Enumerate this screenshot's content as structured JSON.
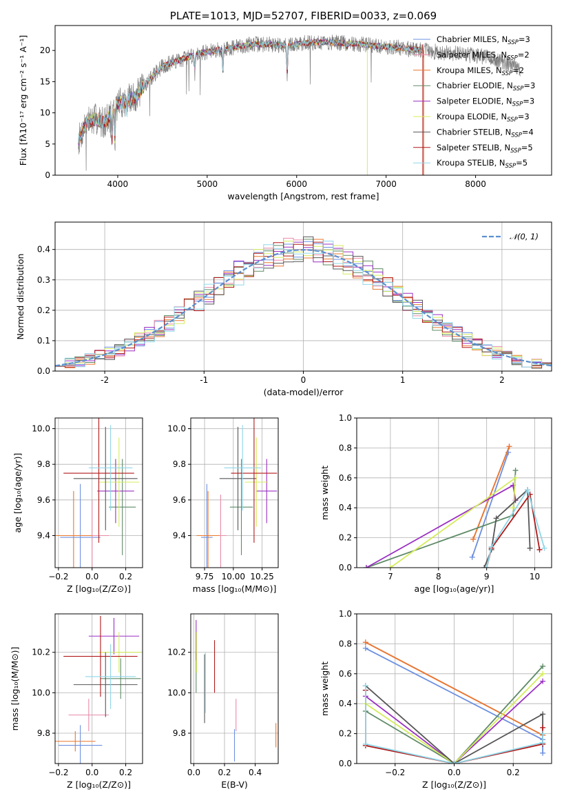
{
  "colors": {
    "chabrier_miles": "#6b8fe0",
    "salpeter_miles": "#e98aa8",
    "kroupa_miles": "#e8762d",
    "chabrier_elodie": "#5e8a66",
    "salpeter_elodie": "#9a2fc2",
    "kroupa_elodie": "#d4ec5a",
    "chabrier_stelib": "#555555",
    "salpeter_stelib": "#b01818",
    "kroupa_stelib": "#8ed6e8",
    "data": "#808080",
    "gaussian": "#5b8fd0"
  },
  "chart_data": [
    {
      "id": "spectrum",
      "type": "line",
      "title": "PLATE=1013, MJD=52707, FIBERID=0033, z=0.069",
      "xlabel": "wavelength [Angstrom, rest frame]",
      "ylabel": "Flux [fλ10⁻¹⁷ erg cm⁻² s⁻¹ A⁻¹]",
      "xlim": [
        3300,
        8850
      ],
      "ylim": [
        0,
        24
      ],
      "xticks": [
        4000,
        5000,
        6000,
        7000,
        8000
      ],
      "yticks": [
        0,
        5,
        10,
        15,
        20
      ],
      "legend_position": "upper-right",
      "legend": [
        {
          "key": "chabrier_miles",
          "label": "Chabrier MILES, N",
          "sub": "SSP",
          "tail": "=3"
        },
        {
          "key": "salpeter_miles",
          "label": "Salpeter MILES, N",
          "sub": "SSP",
          "tail": "=2"
        },
        {
          "key": "kroupa_miles",
          "label": "Kroupa MILES, N",
          "sub": "SSP",
          "tail": "=2"
        },
        {
          "key": "chabrier_elodie",
          "label": "Chabrier ELODIE, N",
          "sub": "SSP",
          "tail": "=3"
        },
        {
          "key": "salpeter_elodie",
          "label": "Salpeter ELODIE, N",
          "sub": "SSP",
          "tail": "=3"
        },
        {
          "key": "kroupa_elodie",
          "label": "Kroupa ELODIE, N",
          "sub": "SSP",
          "tail": "=3"
        },
        {
          "key": "chabrier_stelib",
          "label": "Chabrier STELIB, N",
          "sub": "SSP",
          "tail": "=4"
        },
        {
          "key": "salpeter_stelib",
          "label": "Salpeter STELIB, N",
          "sub": "SSP",
          "tail": "=5"
        },
        {
          "key": "kroupa_stelib",
          "label": "Kroupa STELIB, N",
          "sub": "SSP",
          "tail": "=5"
        }
      ],
      "continuum": {
        "x": [
          3560,
          3650,
          3750,
          3850,
          3950,
          4000,
          4100,
          4200,
          4300,
          4400,
          4500,
          4700,
          4900,
          5100,
          5300,
          5500,
          5700,
          5900,
          6100,
          6300,
          6500,
          6700,
          6900,
          7100,
          7300,
          7500,
          7700,
          7900,
          8100,
          8300,
          8500
        ],
        "y": [
          5.5,
          8.5,
          9.0,
          8.5,
          10.0,
          11.5,
          12.0,
          12.5,
          14.5,
          16.0,
          17.5,
          18.5,
          19.5,
          20.0,
          20.5,
          21.0,
          21.0,
          20.8,
          21.2,
          21.3,
          21.2,
          21.0,
          20.7,
          20.5,
          20.2,
          19.9,
          19.6,
          19.3,
          19.0,
          18.2,
          17.0
        ]
      }
    },
    {
      "id": "residuals",
      "type": "histogram",
      "xlabel": "(data-model)/error",
      "ylabel": "Normed distribution",
      "xlim": [
        -2.5,
        2.5
      ],
      "ylim": [
        0,
        0.49
      ],
      "xticks": [
        -2,
        -1,
        0,
        1,
        2
      ],
      "yticks": [
        0.0,
        0.1,
        0.2,
        0.3,
        0.4
      ],
      "legend": "𝒩(0, 1)",
      "legend_position": "upper-right",
      "bin_width": 0.1,
      "model_order": [
        "chabrier_miles",
        "salpeter_miles",
        "kroupa_miles",
        "chabrier_elodie",
        "salpeter_elodie",
        "kroupa_elodie",
        "chabrier_stelib",
        "salpeter_stelib",
        "kroupa_stelib"
      ]
    },
    {
      "id": "age-vs-Z",
      "type": "errorbar",
      "xlabel": "Z [log₁₀(Z/Z⊙)]",
      "ylabel": "age  [log₁₀(age/yr)]",
      "xlim": [
        -0.22,
        0.3
      ],
      "ylim": [
        9.22,
        10.06
      ],
      "xticks": [
        -0.2,
        0.0,
        0.2
      ],
      "xticklabels": [
        "−0.2",
        "0.0",
        "0.2"
      ],
      "yticks": [
        9.4,
        9.6,
        9.8,
        10.0
      ],
      "points": [
        {
          "key": "chabrier_miles",
          "x": -0.07,
          "xerr": 0.12,
          "y": 9.39,
          "yerr": 0.3
        },
        {
          "key": "salpeter_miles",
          "x": 0.0,
          "xerr": 0.1,
          "y": 9.4,
          "yerr": 0.2
        },
        {
          "key": "kroupa_miles",
          "x": -0.11,
          "xerr": 0.11,
          "y": 9.4,
          "yerr": 0.25
        },
        {
          "key": "chabrier_elodie",
          "x": 0.18,
          "xerr": 0.08,
          "y": 9.56,
          "yerr": 0.27
        },
        {
          "key": "salpeter_elodie",
          "x": 0.14,
          "xerr": 0.11,
          "y": 9.65,
          "yerr": 0.18
        },
        {
          "key": "kroupa_elodie",
          "x": 0.16,
          "xerr": 0.12,
          "y": 9.7,
          "yerr": 0.25
        },
        {
          "key": "chabrier_stelib",
          "x": 0.08,
          "xerr": 0.19,
          "y": 9.72,
          "yerr": 0.29
        },
        {
          "key": "salpeter_stelib",
          "x": 0.04,
          "xerr": 0.21,
          "y": 9.75,
          "yerr": 0.39
        },
        {
          "key": "kroupa_stelib",
          "x": 0.11,
          "xerr": 0.13,
          "y": 9.78,
          "yerr": 0.24
        }
      ]
    },
    {
      "id": "age-vs-mass",
      "type": "errorbar",
      "xlabel": "mass [log₁₀(M/M⊙)]",
      "xlim": [
        9.63,
        10.39
      ],
      "ylim": [
        9.22,
        10.06
      ],
      "xticks": [
        9.75,
        10.0,
        10.25
      ],
      "xticklabels": [
        "9.75",
        "10.00",
        "10.25"
      ],
      "yticks": [
        9.4,
        9.6,
        9.8,
        10.0
      ],
      "points": [
        {
          "key": "chabrier_miles",
          "x": 9.77,
          "xerr": 0.05,
          "y": 9.39,
          "yerr": 0.3
        },
        {
          "key": "salpeter_miles",
          "x": 9.89,
          "xerr": 0.05,
          "y": 9.4,
          "yerr": 0.23
        },
        {
          "key": "kroupa_miles",
          "x": 9.78,
          "xerr": 0.1,
          "y": 9.4,
          "yerr": 0.25
        },
        {
          "key": "chabrier_elodie",
          "x": 10.07,
          "xerr": 0.1,
          "y": 9.56,
          "yerr": 0.27
        },
        {
          "key": "salpeter_elodie",
          "x": 10.29,
          "xerr": 0.09,
          "y": 9.65,
          "yerr": 0.18
        },
        {
          "key": "kroupa_elodie",
          "x": 10.2,
          "xerr": 0.1,
          "y": 9.7,
          "yerr": 0.25
        },
        {
          "key": "chabrier_stelib",
          "x": 10.04,
          "xerr": 0.16,
          "y": 9.72,
          "yerr": 0.29
        },
        {
          "key": "salpeter_stelib",
          "x": 10.18,
          "xerr": 0.2,
          "y": 9.75,
          "yerr": 0.39
        },
        {
          "key": "kroupa_stelib",
          "x": 10.08,
          "xerr": 0.16,
          "y": 9.78,
          "yerr": 0.24
        }
      ]
    },
    {
      "id": "weight-vs-age",
      "type": "line",
      "xlabel": "age  [log₁₀(age/yr)]",
      "ylabel": "mass weight",
      "xlim": [
        6.3,
        10.35
      ],
      "ylim": [
        0,
        1.0
      ],
      "xticks": [
        7,
        8,
        9,
        10
      ],
      "yticks": [
        0.0,
        0.2,
        0.4,
        0.6,
        0.8,
        1.0
      ],
      "series": [
        {
          "key": "chabrier_miles",
          "x": [
            8.7,
            9.45
          ],
          "y": [
            0.07,
            0.77
          ]
        },
        {
          "key": "salpeter_miles",
          "x": [
            8.72,
            9.47
          ],
          "y": [
            0.19,
            0.81
          ]
        },
        {
          "key": "kroupa_miles",
          "x": [
            8.72,
            9.47
          ],
          "y": [
            0.19,
            0.81
          ]
        },
        {
          "key": "chabrier_elodie",
          "x": [
            6.5,
            9.55,
            9.6
          ],
          "y": [
            0.0,
            0.35,
            0.65
          ]
        },
        {
          "key": "salpeter_elodie",
          "x": [
            6.5,
            9.55,
            9.6
          ],
          "y": [
            0.0,
            0.55,
            0.45
          ]
        },
        {
          "key": "kroupa_elodie",
          "x": [
            7.0,
            9.6,
            9.55
          ],
          "y": [
            0.0,
            0.6,
            0.4
          ]
        },
        {
          "key": "chabrier_stelib",
          "x": [
            8.95,
            9.1,
            9.2,
            9.85,
            9.9
          ],
          "y": [
            0.0,
            0.12,
            0.33,
            0.52,
            0.13
          ]
        },
        {
          "key": "salpeter_stelib",
          "x": [
            9.0,
            9.1,
            9.9,
            10.1
          ],
          "y": [
            0.0,
            0.13,
            0.49,
            0.12
          ]
        },
        {
          "key": "kroupa_stelib",
          "x": [
            9.0,
            9.1,
            9.85,
            10.2
          ],
          "y": [
            0.0,
            0.14,
            0.52,
            0.13
          ]
        }
      ]
    },
    {
      "id": "mass-vs-Z",
      "type": "errorbar",
      "xlabel": "Z [log₁₀(Z/Z⊙)]",
      "ylabel": "mass [log₁₀(M/M⊙)]",
      "xlim": [
        -0.22,
        0.3
      ],
      "ylim": [
        9.65,
        10.39
      ],
      "xticks": [
        -0.2,
        0.0,
        0.2
      ],
      "xticklabels": [
        "−0.2",
        "0.0",
        "0.2"
      ],
      "yticks": [
        9.8,
        10.0,
        10.2
      ],
      "points": [
        {
          "key": "chabrier_miles",
          "x": -0.07,
          "xerr": 0.13,
          "y": 9.74,
          "yerr": 0.1
        },
        {
          "key": "salpeter_miles",
          "x": -0.02,
          "xerr": 0.12,
          "y": 9.89,
          "yerr": 0.08
        },
        {
          "key": "kroupa_miles",
          "x": -0.1,
          "xerr": 0.12,
          "y": 9.76,
          "yerr": 0.05
        },
        {
          "key": "chabrier_elodie",
          "x": 0.17,
          "xerr": 0.12,
          "y": 10.07,
          "yerr": 0.1
        },
        {
          "key": "salpeter_elodie",
          "x": 0.13,
          "xerr": 0.15,
          "y": 10.28,
          "yerr": 0.09
        },
        {
          "key": "kroupa_elodie",
          "x": 0.16,
          "xerr": 0.13,
          "y": 10.2,
          "yerr": 0.1
        },
        {
          "key": "chabrier_stelib",
          "x": 0.08,
          "xerr": 0.19,
          "y": 10.04,
          "yerr": 0.16
        },
        {
          "key": "salpeter_stelib",
          "x": 0.05,
          "xerr": 0.22,
          "y": 10.18,
          "yerr": 0.2
        },
        {
          "key": "kroupa_stelib",
          "x": 0.11,
          "xerr": 0.15,
          "y": 10.08,
          "yerr": 0.16
        }
      ]
    },
    {
      "id": "mass-vs-ebv",
      "type": "errorbar",
      "xlabel": "E(B-V)",
      "xlim": [
        -0.02,
        0.55
      ],
      "ylim": [
        9.65,
        10.39
      ],
      "xticks": [
        0.0,
        0.2,
        0.4
      ],
      "xticklabels": [
        "0.0",
        "0.2",
        "0.4"
      ],
      "yticks": [
        9.8,
        10.0,
        10.2
      ],
      "points": [
        {
          "key": "chabrier_miles",
          "x": 0.265,
          "y": 9.74,
          "yerr": 0.08
        },
        {
          "key": "salpeter_miles",
          "x": 0.275,
          "y": 9.89,
          "yerr": 0.08
        },
        {
          "key": "kroupa_miles",
          "x": 0.535,
          "y": 9.79,
          "yerr": 0.06
        },
        {
          "key": "chabrier_elodie",
          "x": 0.015,
          "y": 10.1,
          "yerr": 0.1
        },
        {
          "key": "salpeter_elodie",
          "x": 0.015,
          "y": 10.26,
          "yerr": 0.1
        },
        {
          "key": "kroupa_elodie",
          "x": 0.018,
          "y": 10.2,
          "yerr": 0.1
        },
        {
          "key": "chabrier_stelib",
          "x": 0.07,
          "y": 10.02,
          "yerr": 0.17
        },
        {
          "key": "salpeter_stelib",
          "x": 0.135,
          "y": 10.13,
          "yerr": 0.13
        },
        {
          "key": "kroupa_stelib",
          "x": 0.075,
          "y": 10.05,
          "yerr": 0.15
        }
      ]
    },
    {
      "id": "weight-vs-Z",
      "type": "line",
      "xlabel": "Z [log₁₀(Z/Z⊙)]",
      "ylabel": "mass weight",
      "xlim": [
        -0.33,
        0.33
      ],
      "ylim": [
        0,
        1.0
      ],
      "xticks": [
        -0.2,
        0.0,
        0.2
      ],
      "xticklabels": [
        "−0.2",
        "0.0",
        "0.2"
      ],
      "yticks": [
        0.0,
        0.2,
        0.4,
        0.6,
        0.8,
        1.0
      ],
      "series": [
        {
          "key": "chabrier_miles",
          "x": [
            -0.3,
            0.3,
            0.3
          ],
          "y": [
            0.77,
            0.16,
            0.07
          ]
        },
        {
          "key": "salpeter_miles",
          "x": [
            -0.3,
            0.3
          ],
          "y": [
            0.81,
            0.19
          ]
        },
        {
          "key": "kroupa_miles",
          "x": [
            -0.3,
            0.3
          ],
          "y": [
            0.81,
            0.19
          ]
        },
        {
          "key": "chabrier_elodie",
          "x": [
            -0.3,
            0.0,
            0.3
          ],
          "y": [
            0.35,
            0.0,
            0.65
          ]
        },
        {
          "key": "salpeter_elodie",
          "x": [
            -0.3,
            0.0,
            0.3
          ],
          "y": [
            0.45,
            0.0,
            0.55
          ]
        },
        {
          "key": "kroupa_elodie",
          "x": [
            -0.3,
            0.0,
            0.3
          ],
          "y": [
            0.4,
            0.0,
            0.6
          ]
        },
        {
          "key": "chabrier_stelib",
          "x": [
            -0.3,
            0.0,
            0.3,
            0.3
          ],
          "y": [
            0.52,
            0.0,
            0.33,
            0.13
          ]
        },
        {
          "key": "salpeter_stelib",
          "x": [
            -0.3,
            -0.3,
            0.0,
            0.3,
            0.3
          ],
          "y": [
            0.49,
            0.12,
            0.0,
            0.13,
            0.24
          ]
        },
        {
          "key": "kroupa_stelib",
          "x": [
            -0.3,
            -0.3,
            0.0,
            0.3,
            0.3
          ],
          "y": [
            0.52,
            0.13,
            0.0,
            0.14,
            0.2
          ]
        }
      ]
    }
  ]
}
